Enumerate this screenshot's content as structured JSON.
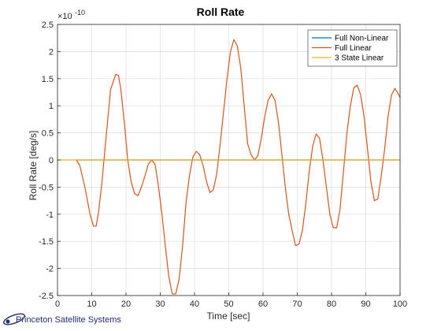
{
  "chart_data": {
    "type": "line",
    "title": "Roll Rate",
    "xlabel": "Time [sec]",
    "ylabel": "Roll Rate [deg/s]",
    "exponent_label": "×10",
    "exponent_power": "-10",
    "y_scale_factor": 1e-10,
    "xlim": [
      0,
      100
    ],
    "ylim": [
      -2.5,
      2.5
    ],
    "x_ticks": [
      "0",
      "10",
      "20",
      "30",
      "40",
      "50",
      "60",
      "70",
      "80",
      "90",
      "100"
    ],
    "y_ticks": [
      "2.5",
      "2",
      "1.5",
      "1",
      "0.5",
      "0",
      "-0.5",
      "-1",
      "-1.5",
      "-2",
      "-2.5"
    ],
    "grid": true,
    "legend_position": "top-right",
    "series": [
      {
        "name": "Full Non-Linear",
        "color": "#0072BD",
        "x": [
          5.5,
          100
        ],
        "y": [
          0,
          0
        ]
      },
      {
        "name": "Full Linear",
        "color": "#D95319",
        "x": [
          5.5,
          6.5,
          8,
          9.5,
          10.5,
          11.3,
          12,
          13,
          14,
          15.5,
          17,
          17.8,
          18.5,
          19.5,
          20.5,
          21.5,
          22.5,
          23.5,
          24.5,
          25.5,
          26.5,
          27.5,
          28.5,
          29.5,
          30.5,
          31.5,
          32.5,
          33.5,
          34.5,
          35.5,
          36.5,
          37.5,
          38.5,
          39.5,
          40.5,
          41.5,
          42.5,
          43.5,
          44.5,
          45.5,
          46.5,
          47.5,
          48.5,
          49.5,
          50.5,
          51.5,
          52.5,
          53.5,
          54.5,
          55.5,
          56.5,
          57.5,
          58.5,
          59.5,
          60.5,
          61.5,
          62.5,
          63.5,
          64.5,
          65.5,
          66.5,
          67.5,
          68.5,
          69.5,
          70.5,
          71.5,
          72.5,
          73.5,
          74.5,
          75.5,
          76.5,
          77.5,
          78.5,
          79.5,
          80.5,
          81.5,
          82.5,
          83.5,
          84.5,
          85.5,
          86.5,
          87.5,
          88.5,
          89.5,
          90.5,
          91.5,
          92.5,
          93.5,
          94.5,
          95.5,
          96.5,
          97.5,
          98.5,
          99.5,
          100
        ],
        "y": [
          0,
          -0.1,
          -0.5,
          -1.0,
          -1.22,
          -1.22,
          -0.95,
          -0.4,
          0.3,
          1.3,
          1.58,
          1.56,
          1.3,
          0.7,
          0.0,
          -0.4,
          -0.62,
          -0.66,
          -0.5,
          -0.3,
          -0.08,
          0.0,
          -0.08,
          -0.5,
          -1.0,
          -1.6,
          -2.15,
          -2.47,
          -2.47,
          -2.2,
          -1.6,
          -0.8,
          -0.3,
          0.05,
          0.16,
          0.1,
          -0.1,
          -0.4,
          -0.6,
          -0.55,
          -0.25,
          0.3,
          0.9,
          1.5,
          2.0,
          2.22,
          2.1,
          1.7,
          1.0,
          0.3,
          0.1,
          0.0,
          0.08,
          0.4,
          0.8,
          1.1,
          1.22,
          1.1,
          0.7,
          0.1,
          -0.5,
          -1.0,
          -1.3,
          -1.58,
          -1.55,
          -1.3,
          -0.8,
          -0.2,
          0.25,
          0.48,
          0.4,
          0.0,
          -0.5,
          -1.0,
          -1.25,
          -1.25,
          -0.9,
          -0.2,
          0.5,
          1.0,
          1.33,
          1.38,
          1.2,
          0.8,
          0.2,
          -0.4,
          -0.75,
          -0.72,
          -0.3,
          0.2,
          0.8,
          1.2,
          1.32,
          1.22,
          1.15
        ]
      },
      {
        "name": "3 State Linear",
        "color": "#EDB120",
        "x": [
          0,
          100
        ],
        "y": [
          0,
          0
        ]
      }
    ]
  },
  "footer": {
    "logo_text": "Princeton Satellite Systems"
  }
}
